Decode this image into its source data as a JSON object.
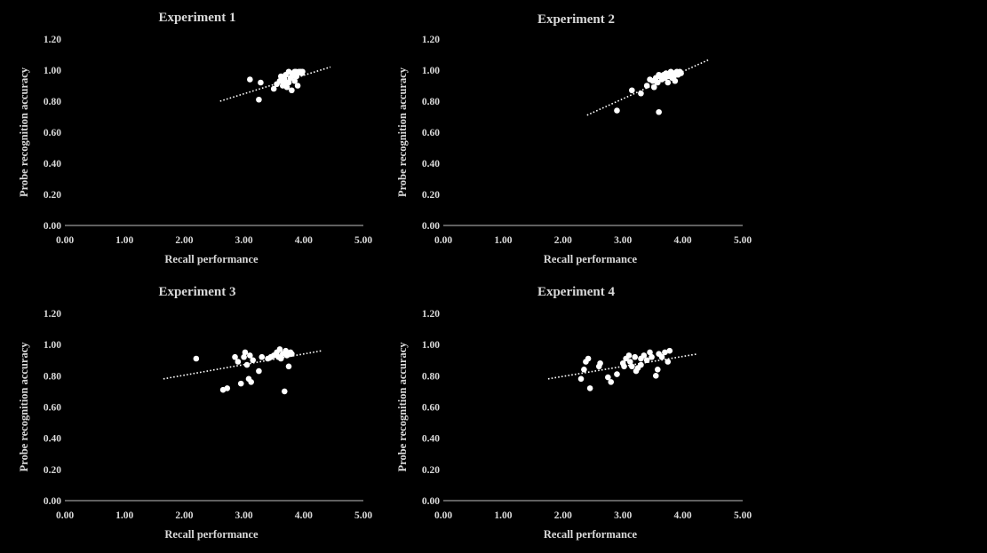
{
  "colors": {
    "background": "#000000",
    "text": "#d9d9d9",
    "points": "#ffffff",
    "axis": "#bfbfbf"
  },
  "chart_data": [
    {
      "type": "scatter",
      "title": "Experiment 1",
      "xlabel": "Recall performance",
      "ylabel": "Probe recognition accuracy",
      "xlim": [
        0,
        5
      ],
      "ylim": [
        0,
        1.2
      ],
      "x_ticks": [
        "0.00",
        "1.00",
        "2.00",
        "3.00",
        "4.00",
        "5.00"
      ],
      "y_ticks": [
        "0.00",
        "0.20",
        "0.40",
        "0.60",
        "0.80",
        "1.00",
        "1.20"
      ],
      "grid": false,
      "trendline": {
        "style": "dotted",
        "x": [
          2.6,
          4.45
        ],
        "y": [
          0.8,
          1.02
        ]
      },
      "points": [
        [
          3.1,
          0.94
        ],
        [
          3.25,
          0.81
        ],
        [
          3.28,
          0.92
        ],
        [
          3.5,
          0.88
        ],
        [
          3.55,
          0.91
        ],
        [
          3.6,
          0.93
        ],
        [
          3.62,
          0.96
        ],
        [
          3.65,
          0.9
        ],
        [
          3.68,
          0.94
        ],
        [
          3.7,
          0.97
        ],
        [
          3.72,
          0.89
        ],
        [
          3.75,
          0.92
        ],
        [
          3.78,
          0.95
        ],
        [
          3.8,
          0.87
        ],
        [
          3.8,
          0.96
        ],
        [
          3.82,
          0.98
        ],
        [
          3.85,
          0.93
        ],
        [
          3.87,
          0.99
        ],
        [
          3.88,
          0.96
        ],
        [
          3.9,
          0.98
        ],
        [
          3.9,
          0.9
        ],
        [
          3.92,
          0.99
        ],
        [
          3.95,
          0.99
        ],
        [
          3.97,
          0.98
        ],
        [
          3.98,
          0.99
        ],
        [
          3.75,
          0.99
        ],
        [
          3.85,
          0.99
        ],
        [
          3.68,
          0.92
        ]
      ]
    },
    {
      "type": "scatter",
      "title": "Experiment 2",
      "xlabel": "Recall performance",
      "ylabel": "Probe recognition accuracy",
      "xlim": [
        0,
        5
      ],
      "ylim": [
        0,
        1.2
      ],
      "x_ticks": [
        "0.00",
        "1.00",
        "2.00",
        "3.00",
        "4.00",
        "5.00"
      ],
      "y_ticks": [
        "0.00",
        "0.20",
        "0.40",
        "0.60",
        "0.80",
        "1.00",
        "1.20"
      ],
      "grid": false,
      "trendline": {
        "style": "dotted",
        "x": [
          2.4,
          4.45
        ],
        "y": [
          0.71,
          1.07
        ]
      },
      "points": [
        [
          2.9,
          0.74
        ],
        [
          3.15,
          0.87
        ],
        [
          3.3,
          0.85
        ],
        [
          3.4,
          0.9
        ],
        [
          3.5,
          0.93
        ],
        [
          3.52,
          0.89
        ],
        [
          3.55,
          0.95
        ],
        [
          3.58,
          0.92
        ],
        [
          3.6,
          0.73
        ],
        [
          3.62,
          0.96
        ],
        [
          3.65,
          0.94
        ],
        [
          3.68,
          0.97
        ],
        [
          3.7,
          0.95
        ],
        [
          3.72,
          0.98
        ],
        [
          3.75,
          0.96
        ],
        [
          3.78,
          0.97
        ],
        [
          3.8,
          0.99
        ],
        [
          3.82,
          0.95
        ],
        [
          3.85,
          0.98
        ],
        [
          3.87,
          0.93
        ],
        [
          3.9,
          0.99
        ],
        [
          3.92,
          0.97
        ],
        [
          3.95,
          0.99
        ],
        [
          3.97,
          0.98
        ],
        [
          3.6,
          0.97
        ],
        [
          3.75,
          0.92
        ],
        [
          3.85,
          0.96
        ],
        [
          3.45,
          0.94
        ]
      ]
    },
    {
      "type": "scatter",
      "title": "Experiment 3",
      "xlabel": "Recall performance",
      "ylabel": "Probe recognition accuracy",
      "xlim": [
        0,
        5
      ],
      "ylim": [
        0,
        1.2
      ],
      "x_ticks": [
        "0.00",
        "1.00",
        "2.00",
        "3.00",
        "4.00",
        "5.00"
      ],
      "y_ticks": [
        "0.00",
        "0.20",
        "0.40",
        "0.60",
        "0.80",
        "1.00",
        "1.20"
      ],
      "grid": false,
      "trendline": {
        "style": "dotted",
        "x": [
          1.65,
          4.3
        ],
        "y": [
          0.78,
          0.96
        ]
      },
      "points": [
        [
          2.2,
          0.91
        ],
        [
          2.65,
          0.71
        ],
        [
          2.72,
          0.72
        ],
        [
          2.85,
          0.92
        ],
        [
          2.9,
          0.89
        ],
        [
          2.95,
          0.75
        ],
        [
          3.0,
          0.92
        ],
        [
          3.02,
          0.95
        ],
        [
          3.05,
          0.87
        ],
        [
          3.08,
          0.78
        ],
        [
          3.1,
          0.93
        ],
        [
          3.12,
          0.76
        ],
        [
          3.15,
          0.9
        ],
        [
          3.25,
          0.83
        ],
        [
          3.3,
          0.92
        ],
        [
          3.4,
          0.91
        ],
        [
          3.45,
          0.92
        ],
        [
          3.5,
          0.93
        ],
        [
          3.55,
          0.95
        ],
        [
          3.6,
          0.97
        ],
        [
          3.62,
          0.91
        ],
        [
          3.65,
          0.94
        ],
        [
          3.68,
          0.7
        ],
        [
          3.7,
          0.96
        ],
        [
          3.72,
          0.93
        ],
        [
          3.75,
          0.86
        ],
        [
          3.78,
          0.95
        ],
        [
          3.8,
          0.94
        ],
        [
          3.58,
          0.92
        ]
      ]
    },
    {
      "type": "scatter",
      "title": "Experiment 4",
      "xlabel": "Recall performance",
      "ylabel": "Probe recognition accuracy",
      "xlim": [
        0,
        5
      ],
      "ylim": [
        0,
        1.2
      ],
      "x_ticks": [
        "0.00",
        "1.00",
        "2.00",
        "3.00",
        "4.00",
        "5.00"
      ],
      "y_ticks": [
        "0.00",
        "0.20",
        "0.40",
        "0.60",
        "0.80",
        "1.00",
        "1.20"
      ],
      "grid": false,
      "trendline": {
        "style": "dotted",
        "x": [
          1.75,
          4.25
        ],
        "y": [
          0.78,
          0.94
        ]
      },
      "points": [
        [
          2.3,
          0.78
        ],
        [
          2.35,
          0.84
        ],
        [
          2.38,
          0.89
        ],
        [
          2.42,
          0.91
        ],
        [
          2.45,
          0.72
        ],
        [
          2.6,
          0.86
        ],
        [
          2.62,
          0.88
        ],
        [
          2.75,
          0.79
        ],
        [
          2.8,
          0.76
        ],
        [
          2.9,
          0.81
        ],
        [
          3.0,
          0.88
        ],
        [
          3.02,
          0.86
        ],
        [
          3.05,
          0.91
        ],
        [
          3.1,
          0.93
        ],
        [
          3.12,
          0.89
        ],
        [
          3.15,
          0.86
        ],
        [
          3.2,
          0.92
        ],
        [
          3.22,
          0.83
        ],
        [
          3.25,
          0.85
        ],
        [
          3.3,
          0.91
        ],
        [
          3.35,
          0.93
        ],
        [
          3.4,
          0.9
        ],
        [
          3.45,
          0.95
        ],
        [
          3.48,
          0.92
        ],
        [
          3.55,
          0.8
        ],
        [
          3.58,
          0.84
        ],
        [
          3.6,
          0.94
        ],
        [
          3.65,
          0.92
        ],
        [
          3.7,
          0.95
        ],
        [
          3.75,
          0.89
        ],
        [
          3.78,
          0.96
        ],
        [
          3.3,
          0.87
        ]
      ]
    }
  ]
}
